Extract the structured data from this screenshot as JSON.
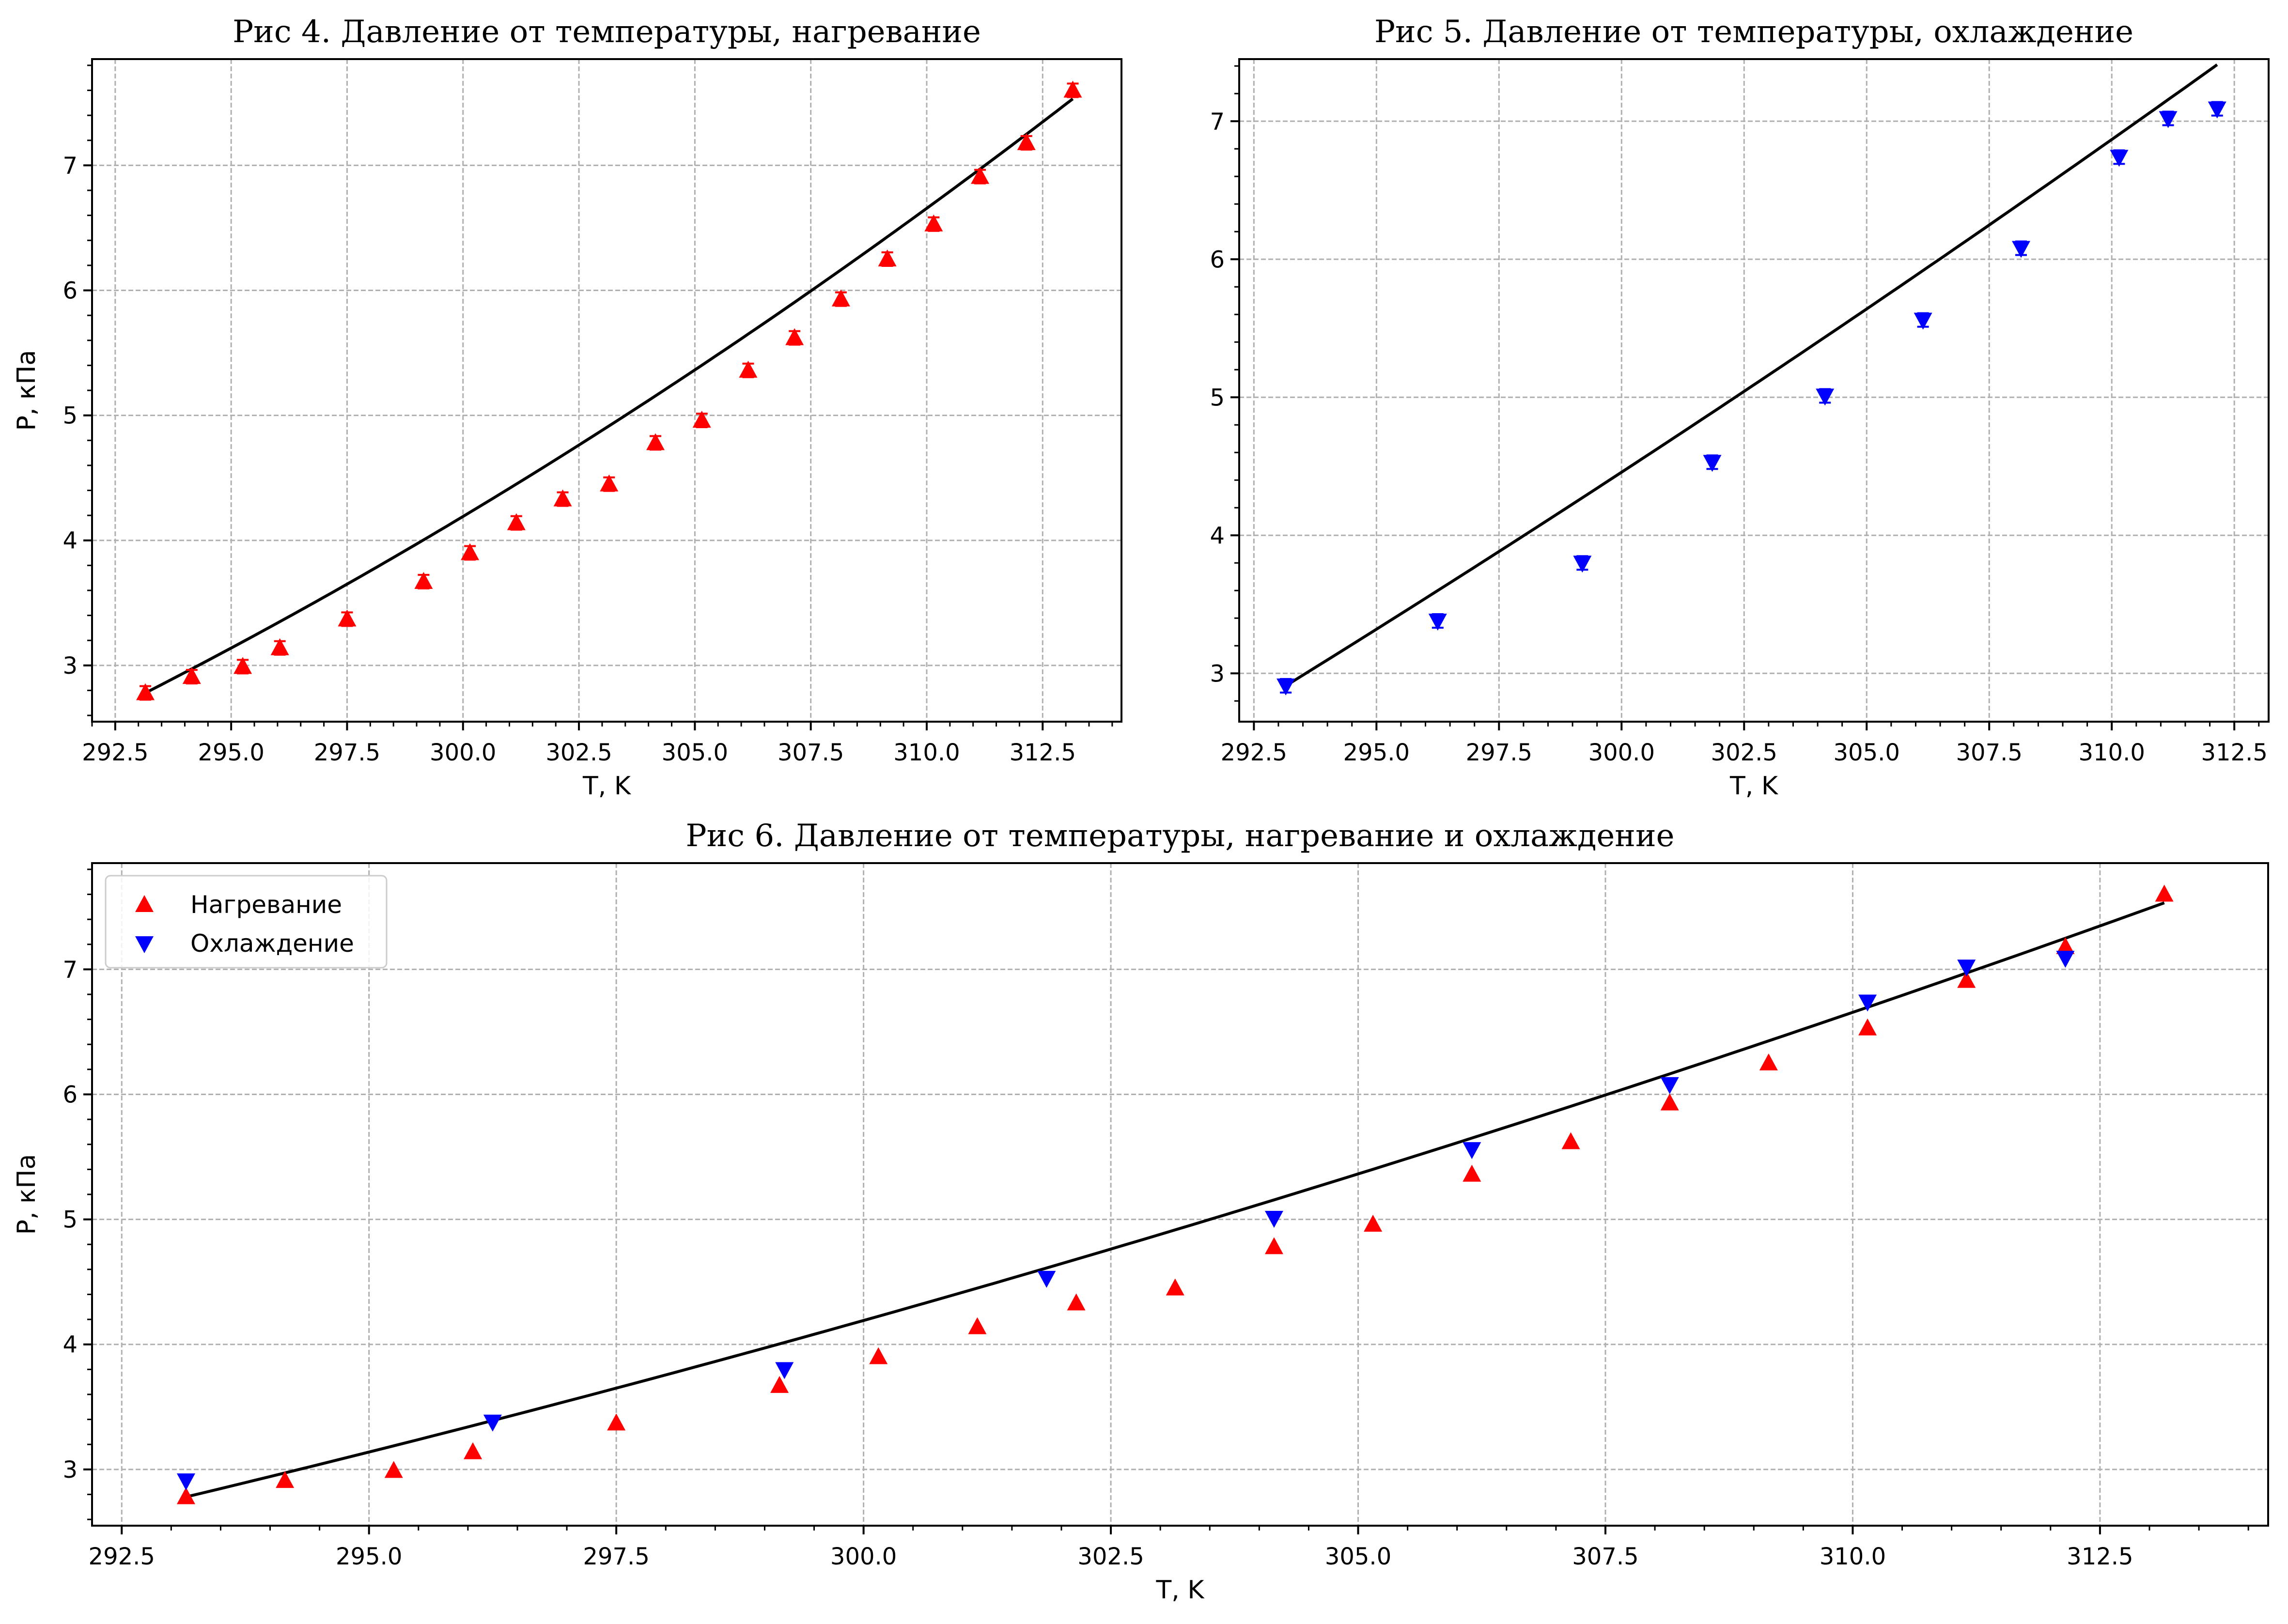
{
  "colors": {
    "heating": "#ff0000",
    "cooling": "#0000ff",
    "fit": "#000000",
    "grid": "#b0b0b0",
    "legend_border": "#cccccc"
  },
  "marker_icons": {
    "heating": "triangle-up-icon",
    "cooling": "triangle-down-icon"
  },
  "chart_data": [
    {
      "id": "fig4",
      "type": "scatter",
      "title": "Рис 4. Давление от температуры, нагревание",
      "xlabel": "T, K",
      "ylabel": "P, кПа",
      "xlim": [
        292.0,
        314.2
      ],
      "ylim": [
        2.55,
        7.85
      ],
      "xticks": [
        "292.5",
        "295.0",
        "297.5",
        "300.0",
        "302.5",
        "305.0",
        "307.5",
        "310.0",
        "312.5"
      ],
      "yticks": [
        "3",
        "4",
        "5",
        "6",
        "7"
      ],
      "grid": true,
      "legend": null,
      "series": [
        {
          "key": "heating",
          "marker": "triangle-up",
          "error_bars": true,
          "x": [
            293.15,
            294.15,
            295.25,
            296.05,
            297.5,
            299.15,
            300.15,
            301.15,
            302.15,
            303.15,
            304.15,
            305.15,
            306.15,
            307.15,
            308.15,
            309.15,
            310.15,
            311.15,
            312.15,
            313.15
          ],
          "y": [
            2.78,
            2.91,
            2.99,
            3.14,
            3.37,
            3.67,
            3.9,
            4.14,
            4.33,
            4.45,
            4.78,
            4.96,
            5.36,
            5.62,
            5.93,
            6.25,
            6.53,
            6.91,
            7.18,
            7.6
          ]
        }
      ],
      "fit": {
        "x_range": [
          293.15,
          313.15
        ],
        "polynomial": [
          -0.5316,
          0.1896,
          0.0024
        ],
        "x0": 293.15
      }
    },
    {
      "id": "fig5",
      "type": "scatter",
      "title": "Рис 5. Давление от температуры, охлаждение",
      "xlabel": "T, K",
      "ylabel": "P, кПа",
      "xlim": [
        292.2,
        313.2
      ],
      "ylim": [
        2.65,
        7.45
      ],
      "xticks": [
        "292.5",
        "295.0",
        "297.5",
        "300.0",
        "302.5",
        "305.0",
        "307.5",
        "310.0",
        "312.5"
      ],
      "yticks": [
        "3",
        "4",
        "5",
        "6",
        "7"
      ],
      "grid": true,
      "legend": null,
      "series": [
        {
          "key": "cooling",
          "marker": "triangle-down",
          "error_bars": true,
          "x": [
            293.15,
            296.25,
            299.2,
            301.85,
            304.15,
            306.15,
            308.15,
            310.15,
            311.15,
            312.15
          ],
          "y": [
            2.91,
            3.38,
            3.8,
            4.53,
            5.01,
            5.56,
            6.08,
            6.74,
            7.02,
            7.09
          ]
        }
      ],
      "fit": {
        "x_range": [
          293.15,
          312.15
        ],
        "polynomial": [
          -0.2828,
          0.2197,
          0.0009
        ],
        "x0": 293.15
      }
    },
    {
      "id": "fig6",
      "type": "scatter",
      "title": "Рис 6. Давление от температуры, нагревание и охлаждение",
      "xlabel": "T, K",
      "ylabel": "P, кПа",
      "xlim": [
        292.2,
        314.2
      ],
      "ylim": [
        2.55,
        7.85
      ],
      "xticks": [
        "292.5",
        "295.0",
        "297.5",
        "300.0",
        "302.5",
        "305.0",
        "307.5",
        "310.0",
        "312.5"
      ],
      "yticks": [
        "3",
        "4",
        "5",
        "6",
        "7"
      ],
      "grid": true,
      "legend": "top-left",
      "series": [
        {
          "key": "heating",
          "name": "Нагревание",
          "marker": "triangle-up",
          "error_bars": false,
          "x": [
            293.15,
            294.15,
            295.25,
            296.05,
            297.5,
            299.15,
            300.15,
            301.15,
            302.15,
            303.15,
            304.15,
            305.15,
            306.15,
            307.15,
            308.15,
            309.15,
            310.15,
            311.15,
            312.15,
            313.15
          ],
          "y": [
            2.78,
            2.91,
            2.99,
            3.14,
            3.37,
            3.67,
            3.9,
            4.14,
            4.33,
            4.45,
            4.78,
            4.96,
            5.36,
            5.62,
            5.93,
            6.25,
            6.53,
            6.91,
            7.18,
            7.6
          ]
        },
        {
          "key": "cooling",
          "name": "Охлаждение",
          "marker": "triangle-down",
          "error_bars": false,
          "x": [
            293.15,
            296.25,
            299.2,
            301.85,
            304.15,
            306.15,
            308.15,
            310.15,
            311.15,
            312.15
          ],
          "y": [
            2.91,
            3.38,
            3.8,
            4.53,
            5.01,
            5.56,
            6.08,
            6.74,
            7.02,
            7.09
          ]
        }
      ],
      "fit": {
        "x_range": [
          293.15,
          313.15
        ],
        "polynomial": [
          -0.5316,
          0.1896,
          0.0024
        ],
        "x0": 293.15
      }
    }
  ]
}
